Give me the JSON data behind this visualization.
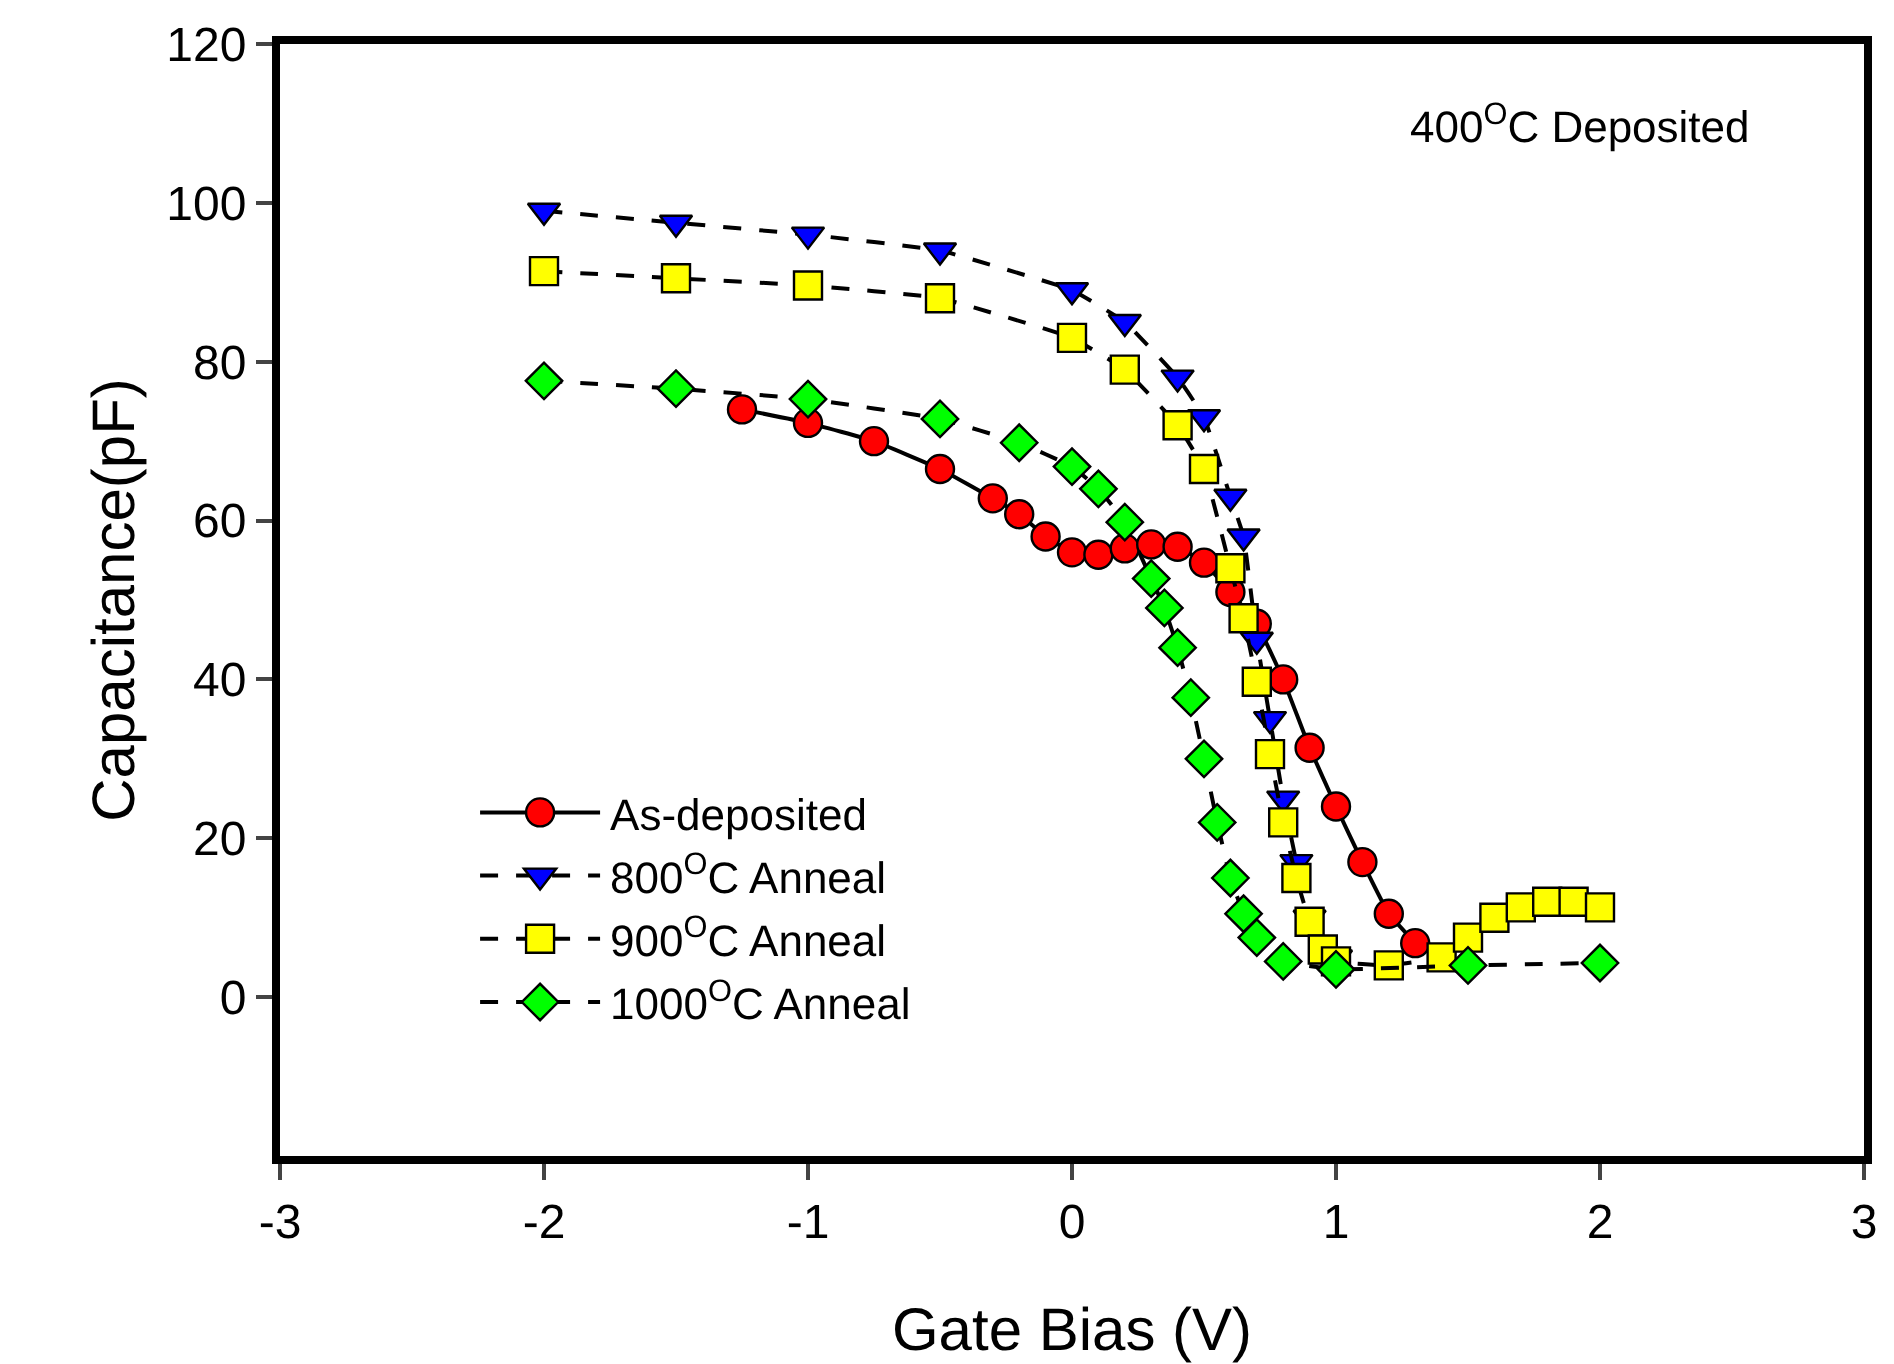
{
  "chart_data": {
    "type": "line",
    "xlabel": "Gate Bias (V)",
    "ylabel": "Capacitance(pF)",
    "annotations": [
      "400$^{O}$C Deposited"
    ],
    "xlim": [
      -3,
      3
    ],
    "xticks": [
      -3,
      -2,
      -1,
      0,
      1,
      2,
      3
    ],
    "ylim": [
      -20,
      120
    ],
    "yticks": [
      0,
      20,
      40,
      60,
      80,
      100,
      120
    ],
    "grid": false,
    "legend": "bottom left",
    "series": [
      {
        "name": "As-deposited",
        "color": "#ff0000",
        "marker": "circle",
        "line_style": "solid",
        "x": [
          -1.25,
          -1,
          -0.75,
          -0.5,
          -0.3,
          -0.2,
          -0.1,
          0,
          0.1,
          0.2,
          0.3,
          0.4,
          0.5,
          0.6,
          0.7,
          0.8,
          0.9,
          1.0,
          1.1,
          1.2,
          1.3
        ],
        "values": [
          74,
          72.3,
          70,
          66.5,
          62.8,
          60.8,
          58,
          56,
          55.7,
          56.5,
          57,
          56.7,
          54.7,
          51,
          47,
          40,
          31.4,
          24,
          17,
          10.5,
          6.8
        ]
      },
      {
        "name": "800$^{O}$C Anneal",
        "color": "#0000ff",
        "marker": "triangle",
        "line_style": "dashed",
        "x": [
          -2,
          -1.5,
          -1,
          -0.5,
          0,
          0.2,
          0.4,
          0.5,
          0.6,
          0.65,
          0.7,
          0.75,
          0.8,
          0.85,
          0.9,
          1.0
        ],
        "values": [
          99,
          97.5,
          96,
          94,
          89,
          85,
          78,
          73,
          63,
          58,
          45,
          35,
          25,
          17,
          10,
          5
        ]
      },
      {
        "name": "900$^{O}$C Anneal",
        "color": "#ffff00",
        "marker": "square",
        "line_style": "dashed",
        "x": [
          -2,
          -1.5,
          -1,
          -0.5,
          0,
          0.2,
          0.4,
          0.5,
          0.6,
          0.65,
          0.7,
          0.75,
          0.8,
          0.85,
          0.9,
          0.95,
          1.0,
          1.2,
          1.4,
          1.5,
          1.6,
          1.7,
          1.8,
          1.9,
          2
        ],
        "values": [
          91.4,
          90.5,
          89.6,
          88,
          83,
          79,
          72,
          66.5,
          54,
          47.7,
          39.7,
          30.6,
          22,
          15,
          9.5,
          6,
          4.5,
          4,
          5,
          7.5,
          10,
          11.3,
          12,
          12,
          11.3
        ]
      },
      {
        "name": "1000$^{O}$C Anneal",
        "color": "#00ff00",
        "marker": "diamond",
        "line_style": "dashed",
        "x": [
          -2,
          -1.5,
          -1,
          -0.5,
          -0.2,
          0,
          0.1,
          0.2,
          0.3,
          0.35,
          0.4,
          0.45,
          0.5,
          0.55,
          0.6,
          0.65,
          0.7,
          0.8,
          1.0,
          1.5,
          2
        ],
        "values": [
          77.6,
          76.6,
          75.3,
          72.8,
          69.8,
          66.8,
          64,
          59.8,
          52.7,
          49,
          44,
          37.7,
          30,
          22,
          15,
          10.5,
          7.5,
          4.5,
          3.5,
          4,
          4.3
        ]
      }
    ]
  }
}
